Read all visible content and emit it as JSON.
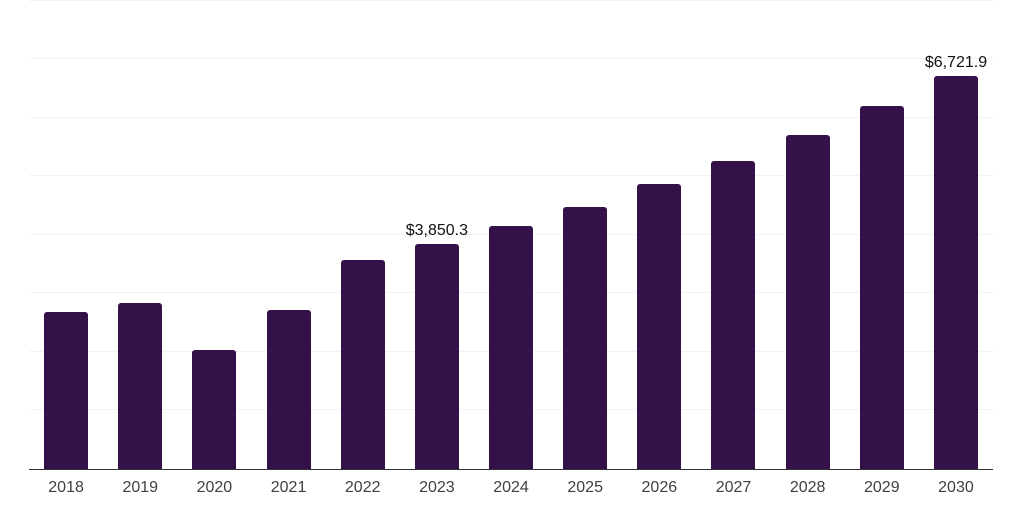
{
  "chart_data": {
    "type": "bar",
    "title": "",
    "xlabel": "",
    "ylabel": "",
    "categories": [
      "2018",
      "2019",
      "2020",
      "2021",
      "2022",
      "2023",
      "2024",
      "2025",
      "2026",
      "2027",
      "2028",
      "2029",
      "2030"
    ],
    "values": [
      2670,
      2825,
      2025,
      2705,
      3560,
      3850.3,
      4155,
      4480,
      4875,
      5265,
      5710,
      6205,
      6721.9
    ],
    "data_labels": [
      {
        "category": "2023",
        "text": "$3,850.3"
      },
      {
        "category": "2030",
        "text": "$6,721.9"
      }
    ],
    "ylim": [
      0,
      8000
    ],
    "gridlines": {
      "visible": true,
      "interval": 1000,
      "axis_ticks_labeled": false
    },
    "legend": "none",
    "colors": {
      "bar": "#35114A",
      "gridline": "#F2F2F4",
      "axis_line": "#333333",
      "axis_label_text": "#3F3F3F",
      "data_label_text": "#111111",
      "background": "#FFFFFF"
    }
  }
}
